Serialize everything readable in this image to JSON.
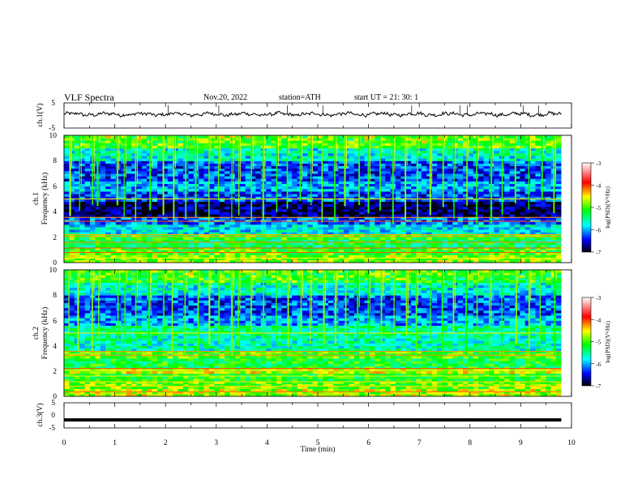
{
  "header": {
    "title": "VLF  Spectra",
    "date": "Nov.20, 2022",
    "station": "station=ATH",
    "start_ut": "start  UT  =   21: 30: 1"
  },
  "chart_data": [
    {
      "panel": "ch1-waveform",
      "type": "line",
      "ylabel": "ch.1(V)",
      "ylim": [
        -5,
        5
      ],
      "y_ticks": [
        "5",
        "-5"
      ],
      "x_range_min": [
        0,
        9.8
      ],
      "baseline": 0.5,
      "noise_amplitude": 1.2,
      "spike_times": [
        2.05,
        3.05,
        4.4,
        5.1,
        6.85,
        7.8,
        7.95,
        9.05,
        9.35
      ]
    },
    {
      "panel": "ch1-spectrogram",
      "type": "heatmap",
      "ylabel": "ch.1\nFrequency (kHz)",
      "ylim": [
        0,
        10
      ],
      "y_ticks": [
        "0",
        "2",
        "4",
        "6",
        "8",
        "10"
      ],
      "x_range_min": [
        0,
        9.8
      ],
      "colorbar": {
        "label": "log(PSD)(V²/Hz)",
        "range": [
          -7,
          -3
        ],
        "ticks": [
          "-3",
          "-4",
          "-5",
          "-6",
          "-7"
        ]
      },
      "background_bands": [
        {
          "f_kHz": [
            0,
            0.6
          ],
          "level": -4.8
        },
        {
          "f_kHz": [
            0.6,
            1.2
          ],
          "level": -5.0
        },
        {
          "f_kHz": [
            1.2,
            1.8
          ],
          "level": -5.3
        },
        {
          "f_kHz": [
            1.8,
            2.3
          ],
          "level": -5.1
        },
        {
          "f_kHz": [
            2.3,
            3.0
          ],
          "level": -5.8
        },
        {
          "f_kHz": [
            3.0,
            3.6
          ],
          "level": -6.2
        },
        {
          "f_kHz": [
            3.6,
            4.8
          ],
          "level": -6.8
        },
        {
          "f_kHz": [
            4.8,
            5.6
          ],
          "level": -6.3
        },
        {
          "f_kHz": [
            5.6,
            6.4
          ],
          "level": -6.0
        },
        {
          "f_kHz": [
            6.4,
            8.0
          ],
          "level": -6.3
        },
        {
          "f_kHz": [
            8.0,
            9.0
          ],
          "level": -5.8
        },
        {
          "f_kHz": [
            9.0,
            10.0
          ],
          "level": -5.2
        }
      ],
      "sferic_times": [
        0.12,
        0.3,
        0.55,
        0.68,
        1.05,
        1.2,
        1.42,
        1.7,
        1.95,
        2.15,
        2.4,
        2.62,
        2.85,
        3.05,
        3.3,
        3.45,
        3.7,
        3.95,
        4.2,
        4.42,
        4.65,
        4.85,
        5.1,
        5.35,
        5.55,
        5.8,
        6.0,
        6.25,
        6.5,
        6.75,
        6.95,
        7.2,
        7.45,
        7.7,
        7.92,
        8.15,
        8.4,
        8.65,
        8.9,
        9.15,
        9.4,
        9.65
      ]
    },
    {
      "panel": "ch2-spectrogram",
      "type": "heatmap",
      "ylabel": "ch.2\nFrequency (kHz)",
      "ylim": [
        0,
        10
      ],
      "y_ticks": [
        "0",
        "2",
        "4",
        "6",
        "8",
        "10"
      ],
      "x_range_min": [
        0,
        9.8
      ],
      "colorbar": {
        "label": "log(PSD)(V²/Hz)",
        "range": [
          -7,
          -3
        ],
        "ticks": [
          "-3",
          "-4",
          "-5",
          "-6",
          "-7"
        ]
      },
      "background_bands": [
        {
          "f_kHz": [
            0,
            0.6
          ],
          "level": -4.7
        },
        {
          "f_kHz": [
            0.6,
            1.2
          ],
          "level": -4.9
        },
        {
          "f_kHz": [
            1.2,
            1.8
          ],
          "level": -5.1
        },
        {
          "f_kHz": [
            1.8,
            2.3
          ],
          "level": -4.6
        },
        {
          "f_kHz": [
            2.3,
            3.0
          ],
          "level": -5.2
        },
        {
          "f_kHz": [
            3.0,
            3.6
          ],
          "level": -5.0
        },
        {
          "f_kHz": [
            3.6,
            4.8
          ],
          "level": -5.6
        },
        {
          "f_kHz": [
            4.8,
            5.6
          ],
          "level": -5.5
        },
        {
          "f_kHz": [
            5.6,
            6.4
          ],
          "level": -6.0
        },
        {
          "f_kHz": [
            6.4,
            8.0
          ],
          "level": -6.3
        },
        {
          "f_kHz": [
            8.0,
            9.0
          ],
          "level": -5.8
        },
        {
          "f_kHz": [
            9.0,
            10.0
          ],
          "level": -5.3
        }
      ],
      "sferic_times": [
        0.12,
        0.3,
        0.55,
        0.68,
        1.05,
        1.2,
        1.42,
        1.7,
        1.95,
        2.15,
        2.4,
        2.62,
        2.85,
        3.05,
        3.3,
        3.45,
        3.7,
        3.95,
        4.2,
        4.42,
        4.65,
        4.85,
        5.1,
        5.35,
        5.55,
        5.8,
        6.0,
        6.25,
        6.5,
        6.75,
        6.95,
        7.2,
        7.45,
        7.7,
        7.92,
        8.15,
        8.4,
        8.65,
        8.9,
        9.15,
        9.4,
        9.65
      ]
    },
    {
      "panel": "ch3-waveform",
      "type": "line",
      "ylabel": "ch.3(V)",
      "ylim": [
        -5,
        5
      ],
      "y_ticks": [
        "5",
        "0",
        "-5"
      ],
      "x_range_min": [
        0,
        9.8
      ],
      "baseline": -1.8
    }
  ],
  "x_axis": {
    "label": "Time  (min)",
    "range": [
      0,
      10
    ],
    "ticks": [
      "0",
      "1",
      "2",
      "3",
      "4",
      "5",
      "6",
      "7",
      "8",
      "9",
      "10"
    ]
  },
  "colors": {
    "colormap": [
      "#000000",
      "#00007a",
      "#0000ff",
      "#00ffff",
      "#00ff00",
      "#ffff00",
      "#ff0000",
      "#ffffff"
    ]
  }
}
